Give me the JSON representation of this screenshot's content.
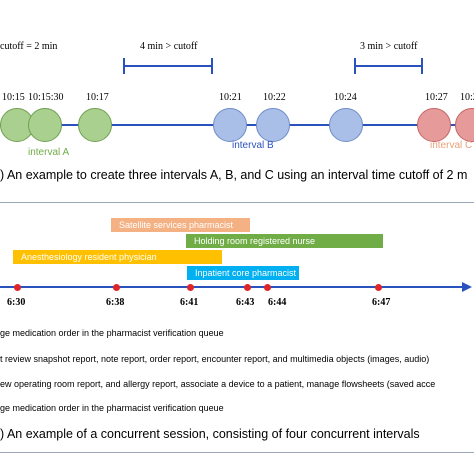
{
  "panel_a": {
    "cutoff_label": "cutoff = 2 min",
    "gap_labels": [
      "4 min > cutoff",
      "3 min > cutoff"
    ],
    "colors": {
      "green": "#a9d08e",
      "blue": "#a9bfe8",
      "red": "#e79a9a",
      "axis": "#2a52be"
    },
    "times": [
      "10:15",
      "10:15:30",
      "10:17",
      "10:21",
      "10:22",
      "10:24",
      "10:27",
      "10:2"
    ],
    "interval_labels": [
      "interval A",
      "interval B",
      "interval C"
    ],
    "caption": ") An example to create three intervals A, B, and C using an interval time cutoff of 2 m"
  },
  "panel_b": {
    "bars": [
      {
        "label": "Satellite services pharmacist",
        "color": "#f4b183"
      },
      {
        "label": "Holding room registered nurse",
        "color": "#70ad47"
      },
      {
        "label": "Anesthesiology resident physician",
        "color": "#ffc000"
      },
      {
        "label": "Inpatient core pharmacist",
        "color": "#00b0f0"
      }
    ],
    "ticks": [
      "6:30",
      "6:38",
      "6:41",
      "6:43",
      "6:44",
      "6:47"
    ],
    "activity_lines": [
      "ge medication order in the pharmacist verification queue",
      "t review snapshot report, note report, order report, encounter report, and multimedia objects (images, audio)",
      "ew operating room report, and allergy report, associate a device to a patient, manage flowsheets (saved acce",
      "ge medication order in the pharmacist verification queue"
    ],
    "caption": ") An example of a concurrent session, consisting of four concurrent intervals"
  }
}
